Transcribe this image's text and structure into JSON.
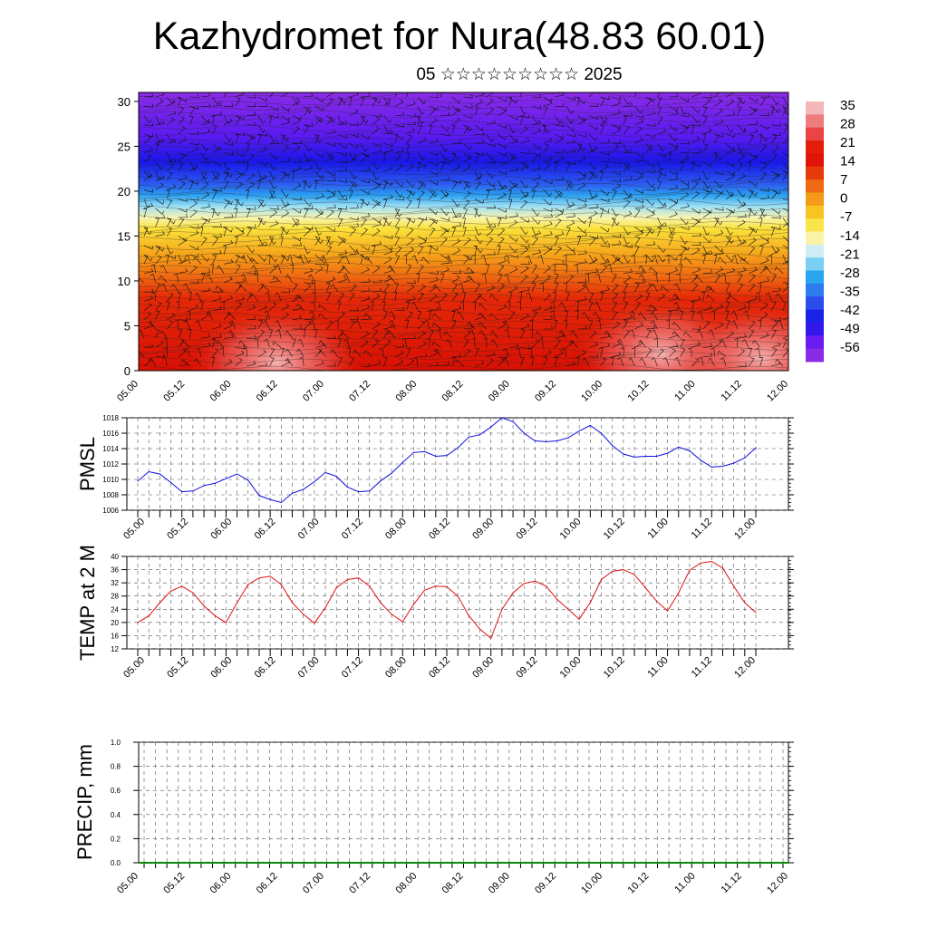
{
  "title": "Kazhydromet for Nura(48.83 60.01)",
  "subtitle": "05 ☆☆☆☆☆☆☆☆☆ 2025",
  "chart_data": [
    {
      "type": "heatmap",
      "name": "cross-section",
      "x_tick_labels": [
        "05.00",
        "05.12",
        "06.00",
        "06.12",
        "07.00",
        "07.12",
        "08.00",
        "08.12",
        "09.00",
        "09.12",
        "10.00",
        "10.12",
        "11.00",
        "11.12",
        "12.00"
      ],
      "y_ticks": [
        0,
        5,
        10,
        15,
        20,
        25,
        30
      ],
      "ylim": [
        0,
        31
      ],
      "colorbar_labels": [
        "35",
        "28",
        "21",
        "14",
        "7",
        "0",
        "-7",
        "-14",
        "-21",
        "-28",
        "-35",
        "-42",
        "-49",
        "-56"
      ],
      "colorbar_values": [
        35,
        28,
        21,
        14,
        7,
        0,
        -7,
        -14,
        -21,
        -28,
        -35,
        -42,
        -49,
        -56
      ],
      "wind_barbs": true
    },
    {
      "type": "line",
      "ylabel": "PMSL",
      "ylim": [
        1006,
        1018
      ],
      "y_ticks": [
        1006,
        1008,
        1010,
        1012,
        1014,
        1016,
        1018
      ],
      "x_tick_labels": [
        "05.00",
        "05.12",
        "06.00",
        "06.12",
        "07.00",
        "07.12",
        "08.00",
        "08.12",
        "09.00",
        "09.12",
        "10.00",
        "10.12",
        "11.00",
        "11.12",
        "12.00"
      ],
      "color": "#1010e0",
      "values": [
        1009.8,
        1011.0,
        1010.7,
        1009.6,
        1008.4,
        1008.5,
        1009.2,
        1009.5,
        1010.1,
        1010.7,
        1009.9,
        1007.9,
        1007.4,
        1007.0,
        1008.2,
        1008.7,
        1009.7,
        1010.9,
        1010.4,
        1009.0,
        1008.4,
        1008.5,
        1009.8,
        1010.8,
        1012.2,
        1013.5,
        1013.6,
        1013.0,
        1013.1,
        1014.1,
        1015.5,
        1015.8,
        1016.8,
        1018.0,
        1017.5,
        1016.0,
        1015.0,
        1014.9,
        1015.0,
        1015.4,
        1016.3,
        1017.0,
        1016.0,
        1014.4,
        1013.3,
        1012.9,
        1013.0,
        1013.0,
        1013.4,
        1014.2,
        1013.7,
        1012.5,
        1011.6,
        1011.7,
        1012.1,
        1012.8,
        1014.1
      ]
    },
    {
      "type": "line",
      "ylabel": "TEMP at 2 M",
      "ylim": [
        12,
        40
      ],
      "y_ticks": [
        12,
        16,
        20,
        24,
        28,
        32,
        36,
        40
      ],
      "x_tick_labels": [
        "05.00",
        "05.12",
        "06.00",
        "06.12",
        "07.00",
        "07.12",
        "08.00",
        "08.12",
        "09.00",
        "09.12",
        "10.00",
        "10.12",
        "11.00",
        "11.12",
        "12.00"
      ],
      "color": "#e01010",
      "values": [
        20.0,
        22.0,
        26.0,
        29.5,
        31.0,
        29.0,
        25.0,
        22.0,
        20.0,
        26.0,
        31.5,
        33.5,
        34.0,
        31.5,
        26.0,
        22.5,
        19.8,
        24.5,
        30.5,
        33.0,
        33.5,
        31.0,
        26.0,
        22.5,
        20.2,
        25.5,
        29.8,
        31.0,
        30.8,
        28.0,
        22.0,
        18.0,
        15.2,
        24.0,
        29.0,
        31.8,
        32.5,
        31.0,
        27.0,
        24.0,
        21.0,
        26.0,
        33.0,
        35.5,
        36.0,
        34.5,
        30.5,
        26.5,
        23.5,
        29.0,
        35.8,
        38.0,
        38.5,
        36.5,
        31.0,
        26.0,
        23.0
      ]
    },
    {
      "type": "bar",
      "ylabel": "PRECIP, mm",
      "ylim": [
        0,
        1
      ],
      "y_ticks": [
        "0.0",
        "0.2",
        "0.4",
        "0.6",
        "0.8",
        "1.0"
      ],
      "x_tick_labels": [
        "05.00",
        "05.12",
        "06.00",
        "06.12",
        "07.00",
        "07.12",
        "08.00",
        "08.12",
        "09.00",
        "09.12",
        "10.00",
        "10.12",
        "11.00",
        "11.12",
        "12.00"
      ],
      "color": "#0a8a0a",
      "values": [
        0,
        0,
        0,
        0,
        0,
        0,
        0,
        0,
        0,
        0,
        0,
        0,
        0,
        0,
        0,
        0,
        0,
        0,
        0,
        0,
        0,
        0,
        0,
        0,
        0,
        0,
        0,
        0,
        0,
        0,
        0,
        0,
        0,
        0,
        0,
        0,
        0,
        0,
        0,
        0,
        0,
        0,
        0,
        0,
        0,
        0,
        0,
        0,
        0,
        0,
        0,
        0,
        0,
        0,
        0,
        0,
        0
      ]
    }
  ]
}
